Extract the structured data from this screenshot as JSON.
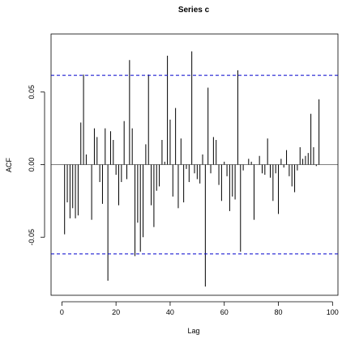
{
  "chart_data": {
    "type": "bar",
    "title": "Series  c",
    "xlabel": "Lag",
    "ylabel": "ACF",
    "xlim": [
      -4,
      102
    ],
    "ylim": [
      -0.09,
      0.09
    ],
    "x_ticks": [
      0,
      20,
      40,
      60,
      80,
      100
    ],
    "x_tick_labels": [
      "0",
      "20",
      "40",
      "60",
      "80",
      "100"
    ],
    "y_ticks": [
      -0.05,
      0.0,
      0.05
    ],
    "y_tick_labels": [
      "-0.05",
      "0.00",
      "0.05"
    ],
    "confidence_bounds": [
      -0.0615,
      0.0615
    ],
    "grid": false,
    "lags": [
      1,
      2,
      3,
      4,
      5,
      6,
      7,
      8,
      9,
      10,
      11,
      12,
      13,
      14,
      15,
      16,
      17,
      18,
      19,
      20,
      21,
      22,
      23,
      24,
      25,
      26,
      27,
      28,
      29,
      30,
      31,
      32,
      33,
      34,
      35,
      36,
      37,
      38,
      39,
      40,
      41,
      42,
      43,
      44,
      45,
      46,
      47,
      48,
      49,
      50,
      51,
      52,
      53,
      54,
      55,
      56,
      57,
      58,
      59,
      60,
      61,
      62,
      63,
      64,
      65,
      66,
      67,
      68,
      69,
      70,
      71,
      72,
      73,
      74,
      75,
      76,
      77,
      78,
      79,
      80,
      81,
      82,
      83,
      84,
      85,
      86,
      87,
      88,
      89,
      90,
      91,
      92,
      93,
      94,
      95,
      96,
      97,
      98,
      99,
      100
    ],
    "values": [
      -0.048,
      -0.026,
      -0.037,
      -0.03,
      -0.037,
      -0.035,
      0.029,
      0.062,
      0.007,
      0.0,
      -0.038,
      0.025,
      0.019,
      -0.012,
      -0.027,
      0.025,
      -0.08,
      0.023,
      0.017,
      -0.007,
      -0.028,
      -0.012,
      0.03,
      -0.01,
      0.072,
      0.025,
      -0.063,
      -0.04,
      -0.06,
      -0.05,
      0.014,
      0.062,
      -0.028,
      -0.043,
      -0.018,
      -0.015,
      0.017,
      0.002,
      0.075,
      0.031,
      -0.022,
      0.039,
      -0.03,
      0.018,
      -0.026,
      -0.003,
      -0.012,
      0.078,
      -0.006,
      -0.01,
      -0.013,
      0.007,
      -0.084,
      0.053,
      -0.006,
      0.019,
      0.017,
      -0.014,
      -0.025,
      0.002,
      -0.008,
      -0.032,
      -0.022,
      -0.024,
      0.065,
      -0.06,
      -0.004,
      0.0,
      0.004,
      0.002,
      -0.038,
      0.0,
      0.006,
      -0.006,
      -0.007,
      0.018,
      -0.009,
      -0.025,
      -0.006,
      -0.034,
      0.004,
      -0.002,
      0.01,
      -0.008,
      -0.015,
      -0.019,
      -0.004,
      0.012,
      0.004,
      0.006,
      0.008,
      0.035,
      0.012,
      -0.001,
      0.045,
      0,
      0,
      0,
      0,
      0
    ]
  }
}
